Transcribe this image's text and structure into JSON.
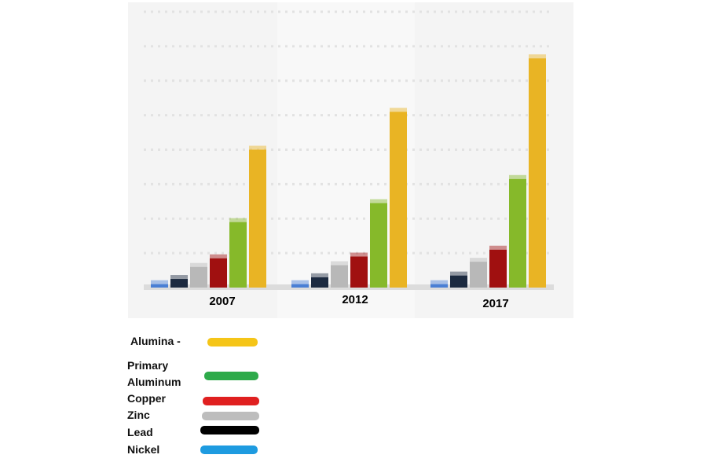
{
  "chart_data": {
    "type": "bar",
    "categories": [
      "2007",
      "2012",
      "2017"
    ],
    "series": [
      {
        "name": "Nickel",
        "values": [
          0.1,
          0.1,
          0.1
        ],
        "bar_color": "#4a7fd4",
        "legend_color": "#1e9be0"
      },
      {
        "name": "Lead",
        "values": [
          0.25,
          0.3,
          0.35
        ],
        "bar_color": "#1c2a40",
        "legend_color": "#000000"
      },
      {
        "name": "Zinc",
        "values": [
          0.6,
          0.65,
          0.75
        ],
        "bar_color": "#b8b8b8",
        "legend_color": "#bdbdbd"
      },
      {
        "name": "Copper",
        "values": [
          0.85,
          0.9,
          1.1
        ],
        "bar_color": "#a01010",
        "legend_color": "#e02020"
      },
      {
        "name": "Primary Aluminum",
        "values": [
          1.9,
          2.45,
          3.15
        ],
        "bar_color": "#86b92a",
        "legend_color": "#2eaa4a"
      },
      {
        "name": "Alumina",
        "values": [
          4.0,
          5.1,
          6.65
        ],
        "bar_color": "#e9b424",
        "legend_color": "#f5c518"
      }
    ],
    "title": "",
    "xlabel": "",
    "ylabel": "",
    "ylim": [
      0,
      8
    ],
    "grid": true,
    "legend_position": "bottom-left"
  },
  "legend": {
    "alumina": "Alumina -",
    "primary_aluminum_line1": "Primary",
    "primary_aluminum_line2": "Aluminum",
    "copper": "Copper",
    "zinc": "Zinc",
    "lead": "Lead",
    "nickel": "Nickel"
  }
}
